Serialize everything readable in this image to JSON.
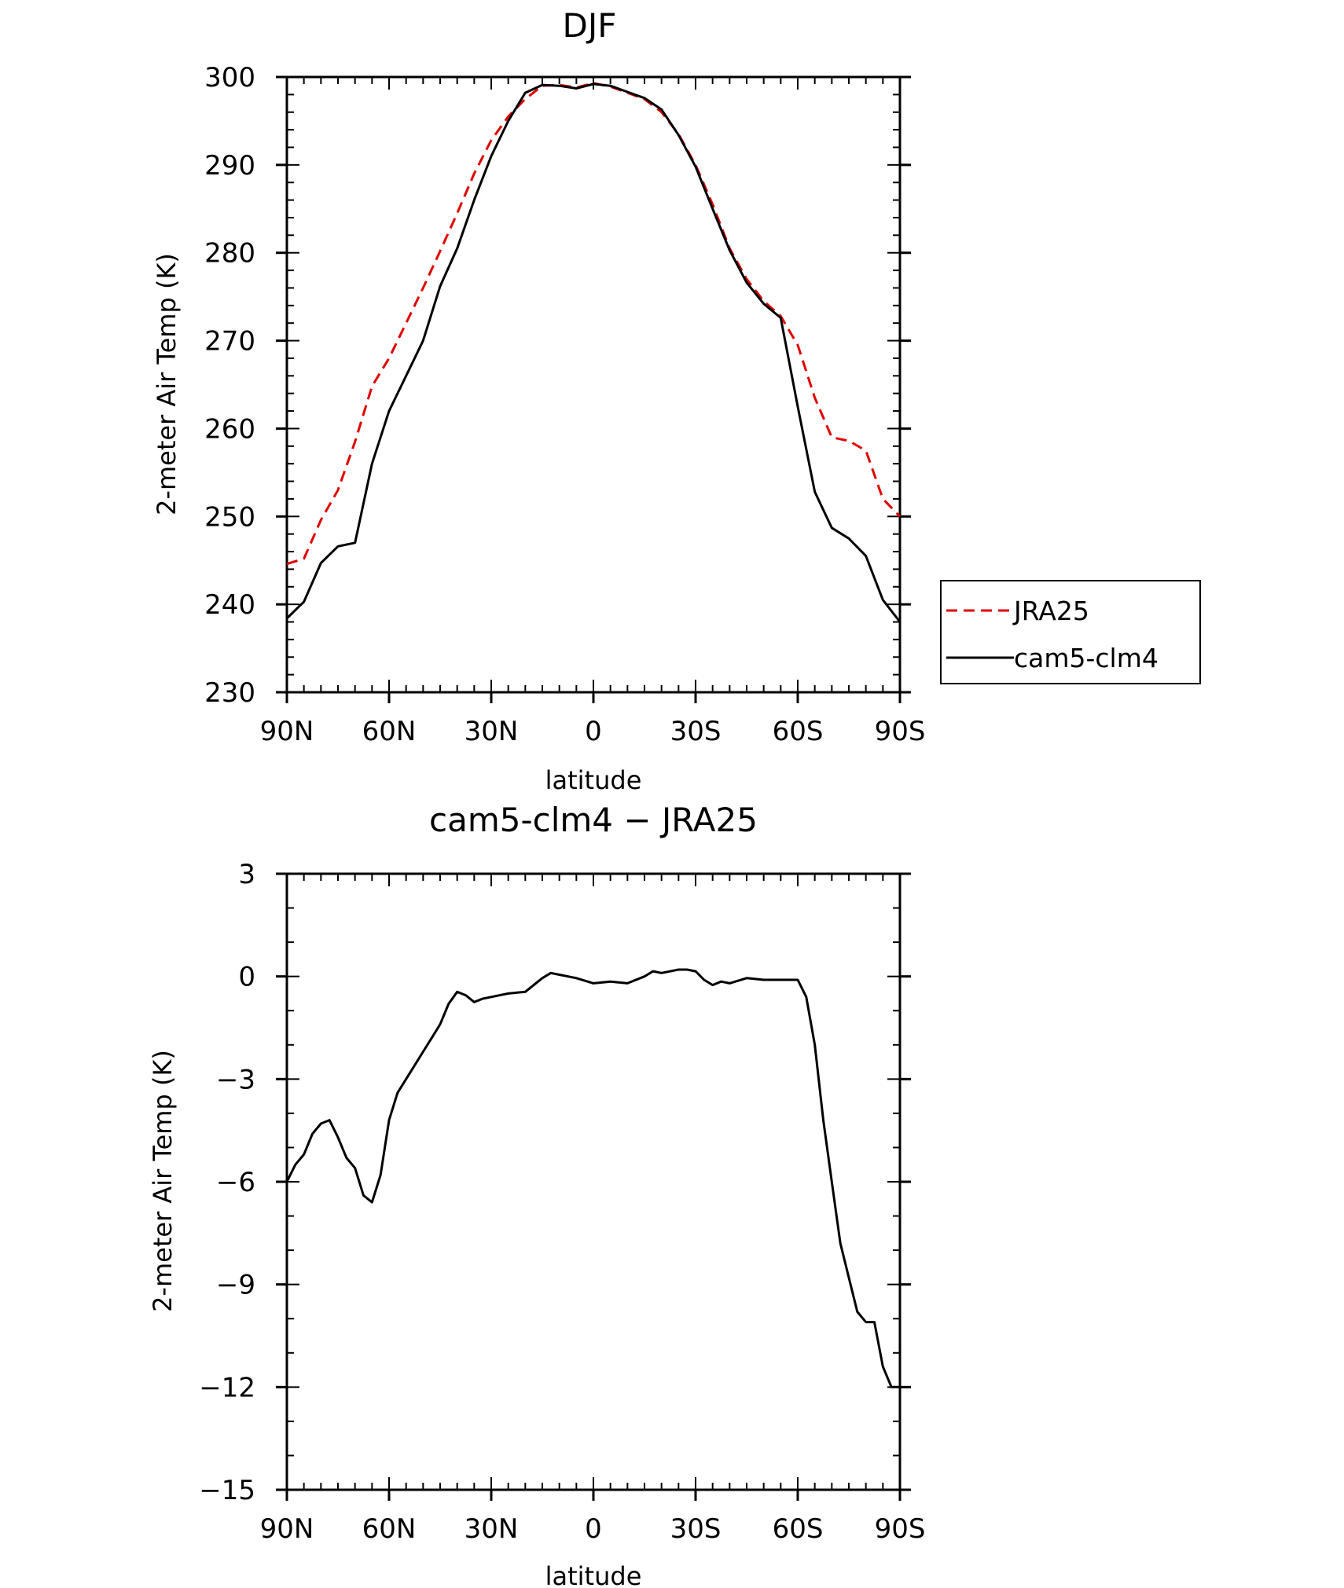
{
  "chart_data": [
    {
      "type": "line",
      "title": "DJF",
      "xlabel": "latitude",
      "ylabel": "2-meter Air Temp (K)",
      "xlim": [
        90,
        -90
      ],
      "ylim": [
        230,
        300
      ],
      "x_ticks": [
        90,
        60,
        30,
        0,
        -30,
        -60,
        -90
      ],
      "x_tick_labels": [
        "90N",
        "60N",
        "30N",
        "0",
        "30S",
        "60S",
        "90S"
      ],
      "y_ticks": [
        230,
        240,
        250,
        260,
        270,
        280,
        290,
        300
      ],
      "legend_position": "right",
      "x": [
        90,
        85,
        80,
        75,
        70,
        65,
        60,
        55,
        50,
        45,
        40,
        35,
        30,
        25,
        20,
        15,
        10,
        5,
        0,
        -5,
        -10,
        -15,
        -20,
        -25,
        -30,
        -35,
        -40,
        -45,
        -50,
        -55,
        -60,
        -65,
        -70,
        -75,
        -80,
        -85,
        -90
      ],
      "series": [
        {
          "name": "JRA25",
          "color": "#e00000",
          "dash": "dashed",
          "values": [
            244.6,
            245.2,
            249.6,
            253.0,
            258.5,
            264.8,
            268.0,
            272.0,
            276.0,
            280.2,
            284.5,
            289.0,
            292.8,
            295.5,
            297.5,
            299.0,
            299.1,
            298.8,
            299.3,
            298.9,
            298.2,
            297.5,
            296.0,
            293.5,
            290.0,
            285.5,
            280.5,
            277.0,
            274.5,
            272.8,
            269.5,
            263.5,
            259.0,
            258.6,
            257.5,
            252.0,
            250.0
          ]
        },
        {
          "name": "cam5-clm4",
          "color": "#000000",
          "dash": "solid",
          "values": [
            238.4,
            240.3,
            244.7,
            246.6,
            247.0,
            256.0,
            262.0,
            266.0,
            270.0,
            276.2,
            280.5,
            286.0,
            291.0,
            295.0,
            298.2,
            299.1,
            299.0,
            298.7,
            299.2,
            299.0,
            298.3,
            297.6,
            296.3,
            293.4,
            289.8,
            285.0,
            280.3,
            276.6,
            274.2,
            272.6,
            262.5,
            252.8,
            248.7,
            247.5,
            245.5,
            240.5,
            238.0
          ]
        }
      ]
    },
    {
      "type": "line",
      "title": "cam5-clm4 − JRA25",
      "xlabel": "latitude",
      "ylabel": "2-meter Air Temp (K)",
      "xlim": [
        90,
        -90
      ],
      "ylim": [
        -15,
        3
      ],
      "x_ticks": [
        90,
        60,
        30,
        0,
        -30,
        -60,
        -90
      ],
      "x_tick_labels": [
        "90N",
        "60N",
        "30N",
        "0",
        "30S",
        "60S",
        "90S"
      ],
      "y_ticks": [
        3,
        0,
        -3,
        -6,
        -9,
        -12,
        -15
      ],
      "y_tick_labels": [
        "3",
        "0",
        "−3",
        "−6",
        "−9",
        "−12",
        "−15"
      ],
      "x": [
        90,
        87.5,
        85,
        82.5,
        80,
        77.5,
        75,
        72.5,
        70,
        67.5,
        65,
        62.5,
        60,
        57.5,
        55,
        52.5,
        50,
        47.5,
        45,
        42.5,
        40,
        37.5,
        35,
        32.5,
        30,
        25,
        20,
        15,
        12.5,
        10,
        5,
        0,
        -5,
        -10,
        -15,
        -17.5,
        -20,
        -25,
        -27.5,
        -30,
        -32.5,
        -35,
        -37.5,
        -40,
        -45,
        -50,
        -55,
        -57.5,
        -60,
        -62.5,
        -65,
        -67.5,
        -70,
        -72.5,
        -75,
        -77.5,
        -80,
        -82.5,
        -85,
        -87.5,
        -90
      ],
      "series": [
        {
          "name": "",
          "color": "#000000",
          "dash": "solid",
          "values": [
            -6.0,
            -5.5,
            -5.2,
            -4.6,
            -4.3,
            -4.2,
            -4.7,
            -5.3,
            -5.6,
            -6.4,
            -6.6,
            -5.8,
            -4.2,
            -3.4,
            -3.0,
            -2.6,
            -2.2,
            -1.8,
            -1.4,
            -0.8,
            -0.45,
            -0.55,
            -0.75,
            -0.65,
            -0.6,
            -0.5,
            -0.45,
            -0.05,
            0.1,
            0.05,
            -0.05,
            -0.2,
            -0.15,
            -0.2,
            0.0,
            0.15,
            0.1,
            0.2,
            0.2,
            0.15,
            -0.1,
            -0.25,
            -0.15,
            -0.2,
            -0.05,
            -0.1,
            -0.1,
            -0.1,
            -0.1,
            -0.6,
            -2.0,
            -4.2,
            -6.0,
            -7.8,
            -8.8,
            -9.8,
            -10.1,
            -10.1,
            -11.4,
            -12.0,
            -12.0
          ]
        }
      ]
    }
  ]
}
